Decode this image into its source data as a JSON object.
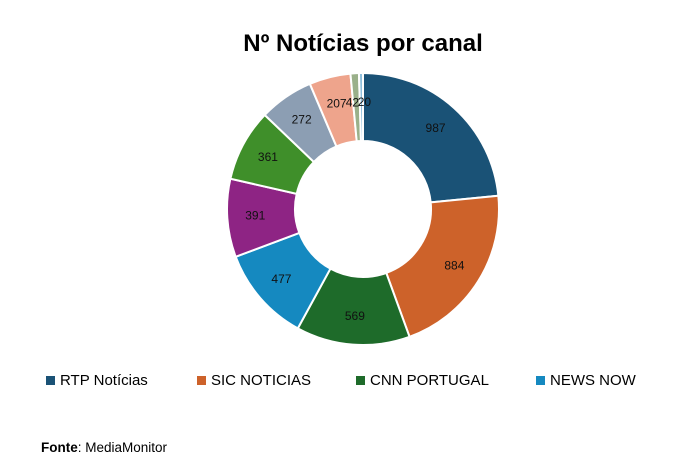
{
  "chart_data": {
    "type": "pie",
    "variant": "donut",
    "title": "Nº Notícias por canal",
    "legend_position": "bottom",
    "legend": [
      "RTP Notícias",
      "SIC NOTICIAS",
      "CNN PORTUGAL",
      "NEWS NOW"
    ],
    "slices": [
      {
        "label": "RTP Notícias",
        "value": 987,
        "color": "#1a5276"
      },
      {
        "label": "SIC NOTICIAS",
        "value": 884,
        "color": "#cd622a"
      },
      {
        "label": "CNN PORTUGAL",
        "value": 569,
        "color": "#1e6b2a"
      },
      {
        "label": "NEWS NOW",
        "value": 477,
        "color": "#1589c0"
      },
      {
        "label": "",
        "value": 391,
        "color": "#8e2484"
      },
      {
        "label": "",
        "value": 361,
        "color": "#3f8f2a"
      },
      {
        "label": "",
        "value": 272,
        "color": "#8c9eb3"
      },
      {
        "label": "",
        "value": 207,
        "color": "#eea48c"
      },
      {
        "label": "",
        "value": 42,
        "color": "#9ab08a"
      },
      {
        "label": "",
        "value": 20,
        "color": "#8fc0dd"
      }
    ]
  },
  "source": {
    "label": "Fonte",
    "value": ": MediaMonitor"
  }
}
